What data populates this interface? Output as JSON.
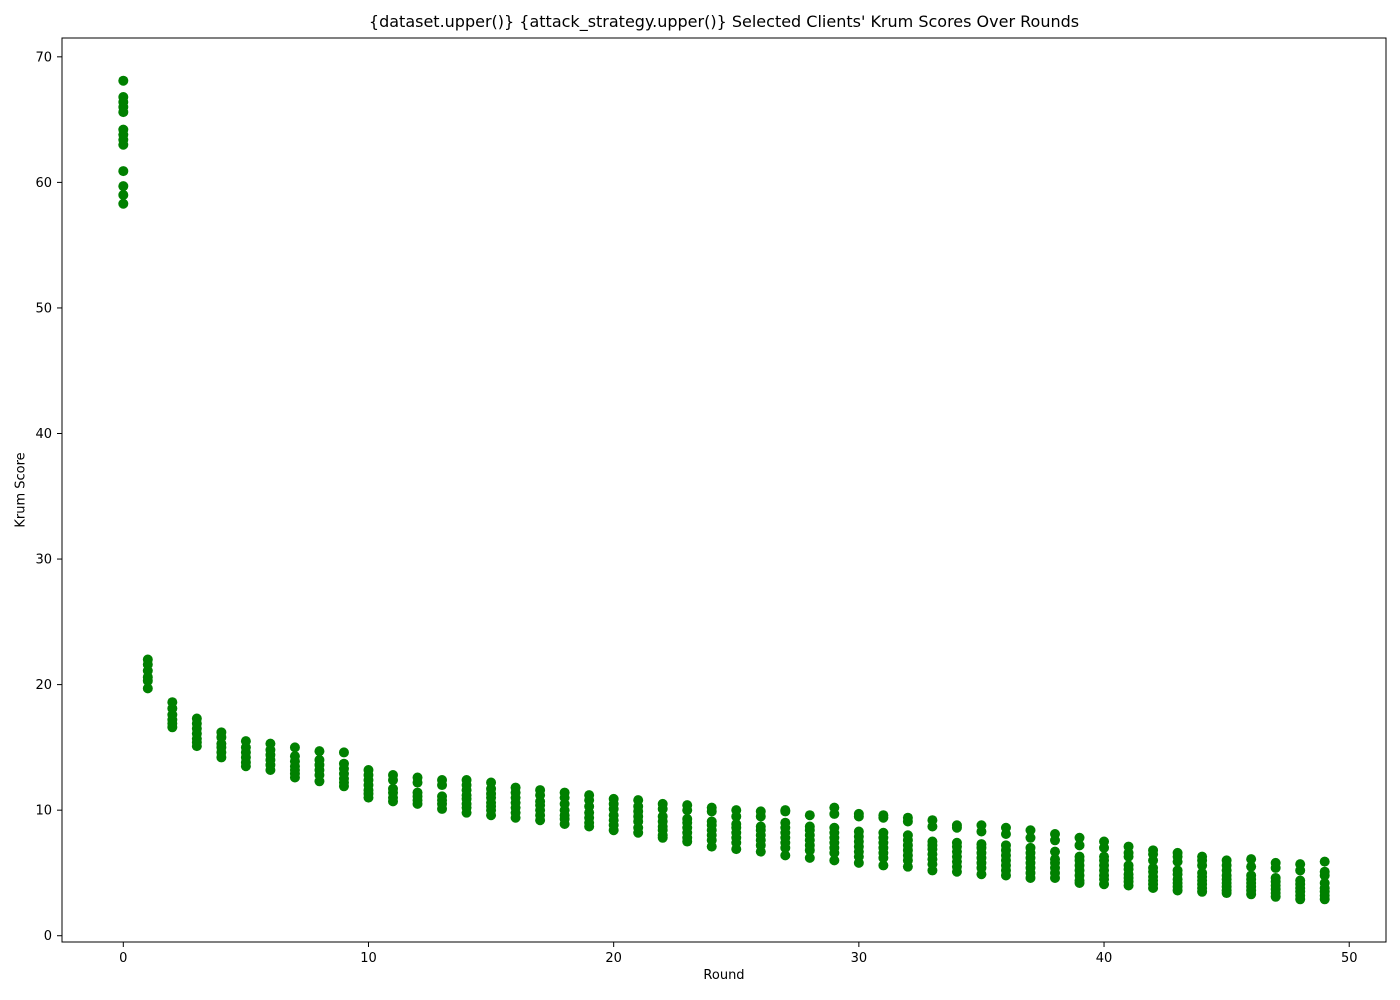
{
  "chart_data": {
    "type": "scatter",
    "title": "{dataset.upper()} {attack_strategy.upper()} Selected Clients' Krum Scores Over Rounds",
    "xlabel": "Round",
    "ylabel": "Krum Score",
    "xlim": [
      -2.5,
      51.5
    ],
    "ylim": [
      -0.5,
      71.5
    ],
    "xticks": [
      0,
      10,
      20,
      30,
      40,
      50
    ],
    "yticks": [
      0,
      10,
      20,
      30,
      40,
      50,
      60,
      70
    ],
    "grid": false,
    "legend": "none",
    "marker_color": "#008000",
    "series": [
      {
        "points": [
          {
            "x": 0,
            "y": [
              68.1,
              66.8,
              66.4,
              66.0,
              65.6,
              64.2,
              63.8,
              63.4,
              63.0,
              60.9,
              59.7,
              59.0,
              58.3
            ]
          },
          {
            "x": 1,
            "y": [
              22.0,
              21.6,
              21.1,
              20.6,
              20.3,
              19.7
            ]
          },
          {
            "x": 2,
            "y": [
              18.6,
              18.1,
              17.6,
              17.2,
              16.9,
              16.6
            ]
          },
          {
            "x": 3,
            "y": [
              17.3,
              16.9,
              16.5,
              16.1,
              15.7,
              15.4,
              15.1
            ]
          },
          {
            "x": 4,
            "y": [
              16.2,
              15.8,
              15.3,
              15.0,
              14.6,
              14.2
            ]
          },
          {
            "x": 5,
            "y": [
              15.5,
              15.0,
              14.6,
              14.2,
              13.8,
              13.5
            ]
          },
          {
            "x": 6,
            "y": [
              15.3,
              14.8,
              14.4,
              14.0,
              13.6,
              13.2
            ]
          },
          {
            "x": 7,
            "y": [
              15.0,
              14.3,
              13.9,
              13.5,
              13.2,
              12.9,
              12.6
            ]
          },
          {
            "x": 8,
            "y": [
              14.7,
              14.0,
              13.6,
              13.2,
              12.8,
              12.3
            ]
          },
          {
            "x": 9,
            "y": [
              14.6,
              13.7,
              13.3,
              12.9,
              12.5,
              12.2,
              11.9
            ]
          },
          {
            "x": 10,
            "y": [
              13.2,
              12.8,
              12.4,
              12.0,
              11.6,
              11.3,
              11.0
            ]
          },
          {
            "x": 11,
            "y": [
              12.8,
              12.4,
              11.7,
              11.4,
              11.0,
              10.7
            ]
          },
          {
            "x": 12,
            "y": [
              12.6,
              12.2,
              11.4,
              11.1,
              10.8,
              10.5
            ]
          },
          {
            "x": 13,
            "y": [
              12.4,
              12.0,
              11.1,
              10.8,
              10.5,
              10.1
            ]
          },
          {
            "x": 14,
            "y": [
              12.4,
              12.0,
              11.6,
              11.2,
              10.9,
              10.5,
              10.2,
              9.8
            ]
          },
          {
            "x": 15,
            "y": [
              12.2,
              11.7,
              11.3,
              11.0,
              10.6,
              10.3,
              10.0,
              9.6
            ]
          },
          {
            "x": 16,
            "y": [
              11.8,
              11.4,
              11.0,
              10.6,
              10.2,
              9.8,
              9.4
            ]
          },
          {
            "x": 17,
            "y": [
              11.6,
              11.2,
              10.7,
              10.4,
              10.0,
              9.6,
              9.2
            ]
          },
          {
            "x": 18,
            "y": [
              11.4,
              11.0,
              10.5,
              10.0,
              9.6,
              9.3,
              8.9
            ]
          },
          {
            "x": 19,
            "y": [
              11.2,
              10.8,
              10.3,
              9.8,
              9.4,
              9.0,
              8.7
            ]
          },
          {
            "x": 20,
            "y": [
              10.9,
              10.5,
              10.1,
              9.6,
              9.2,
              8.8,
              8.4
            ]
          },
          {
            "x": 21,
            "y": [
              10.8,
              10.3,
              9.9,
              9.5,
              9.1,
              8.6,
              8.2
            ]
          },
          {
            "x": 22,
            "y": [
              10.5,
              10.1,
              9.5,
              9.1,
              8.7,
              8.4,
              8.0,
              7.8
            ]
          },
          {
            "x": 23,
            "y": [
              10.4,
              10.0,
              9.3,
              9.0,
              8.6,
              8.2,
              7.8,
              7.5
            ]
          },
          {
            "x": 24,
            "y": [
              10.2,
              9.9,
              9.1,
              8.8,
              8.4,
              8.0,
              7.6,
              7.1
            ]
          },
          {
            "x": 25,
            "y": [
              10.0,
              9.5,
              8.9,
              8.6,
              8.2,
              7.8,
              7.4,
              6.9
            ]
          },
          {
            "x": 26,
            "y": [
              9.9,
              9.5,
              8.7,
              8.4,
              8.0,
              7.6,
              7.2,
              6.7
            ]
          },
          {
            "x": 27,
            "y": [
              10.0,
              9.9,
              9.0,
              8.6,
              8.2,
              7.8,
              7.4,
              7.0,
              6.4
            ]
          },
          {
            "x": 28,
            "y": [
              9.6,
              8.7,
              8.4,
              8.0,
              7.6,
              7.2,
              6.8,
              6.2
            ]
          },
          {
            "x": 29,
            "y": [
              10.2,
              9.7,
              8.6,
              8.2,
              7.8,
              7.4,
              7.0,
              6.6,
              6.0
            ]
          },
          {
            "x": 30,
            "y": [
              9.7,
              9.5,
              8.3,
              7.9,
              7.5,
              7.1,
              6.7,
              6.3,
              5.8
            ]
          },
          {
            "x": 31,
            "y": [
              9.6,
              9.4,
              8.2,
              7.8,
              7.4,
              7.0,
              6.6,
              6.2,
              5.6
            ]
          },
          {
            "x": 32,
            "y": [
              9.4,
              9.1,
              8.0,
              7.6,
              7.2,
              6.8,
              6.4,
              6.0,
              5.5
            ]
          },
          {
            "x": 33,
            "y": [
              9.2,
              8.7,
              7.5,
              7.2,
              6.9,
              6.5,
              6.1,
              5.7,
              5.2
            ]
          },
          {
            "x": 34,
            "y": [
              8.8,
              8.6,
              7.4,
              7.1,
              6.7,
              6.3,
              5.9,
              5.5,
              5.1
            ]
          },
          {
            "x": 35,
            "y": [
              8.8,
              8.3,
              7.3,
              7.0,
              6.6,
              6.2,
              5.8,
              5.4,
              4.9
            ]
          },
          {
            "x": 36,
            "y": [
              8.6,
              8.1,
              7.2,
              6.8,
              6.4,
              6.0,
              5.6,
              5.2,
              4.8
            ]
          },
          {
            "x": 37,
            "y": [
              8.4,
              7.8,
              7.0,
              6.6,
              6.2,
              5.8,
              5.4,
              5.0,
              4.6
            ]
          },
          {
            "x": 38,
            "y": [
              8.1,
              7.6,
              6.7,
              6.1,
              5.8,
              5.4,
              5.0,
              4.6
            ]
          },
          {
            "x": 39,
            "y": [
              7.8,
              7.2,
              6.3,
              6.0,
              5.6,
              5.2,
              4.8,
              4.4,
              4.2
            ]
          },
          {
            "x": 40,
            "y": [
              7.5,
              7.0,
              6.3,
              6.0,
              5.6,
              5.2,
              4.8,
              4.5,
              4.1
            ]
          },
          {
            "x": 41,
            "y": [
              7.1,
              6.6,
              6.3,
              5.6,
              5.3,
              4.9,
              4.6,
              4.3,
              4.0
            ]
          },
          {
            "x": 42,
            "y": [
              6.8,
              6.5,
              6.0,
              5.4,
              5.1,
              4.7,
              4.4,
              4.1,
              3.8
            ]
          },
          {
            "x": 43,
            "y": [
              6.6,
              6.3,
              5.9,
              5.2,
              4.9,
              4.5,
              4.2,
              3.9,
              3.6
            ]
          },
          {
            "x": 44,
            "y": [
              6.3,
              6.0,
              5.6,
              5.0,
              4.7,
              4.4,
              4.1,
              3.8,
              3.5
            ]
          },
          {
            "x": 45,
            "y": [
              6.0,
              5.6,
              5.2,
              4.8,
              4.5,
              4.2,
              3.9,
              3.6,
              3.4
            ]
          },
          {
            "x": 46,
            "y": [
              6.1,
              5.5,
              4.8,
              4.5,
              4.2,
              3.9,
              3.6,
              3.3
            ]
          },
          {
            "x": 47,
            "y": [
              5.8,
              5.4,
              4.6,
              4.3,
              4.0,
              3.7,
              3.4,
              3.1
            ]
          },
          {
            "x": 48,
            "y": [
              5.7,
              5.2,
              4.4,
              4.1,
              3.8,
              3.5,
              3.2,
              2.9
            ]
          },
          {
            "x": 49,
            "y": [
              5.9,
              5.1,
              4.8,
              4.2,
              3.8,
              3.5,
              3.2,
              2.9
            ]
          }
        ]
      }
    ]
  }
}
